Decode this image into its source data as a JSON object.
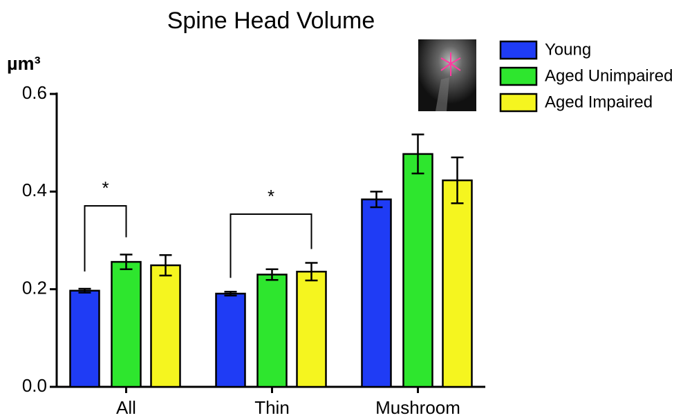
{
  "chart_data": {
    "type": "bar",
    "title": "Spine Head Volume",
    "y_label": "µm³",
    "categories": [
      "All",
      "Thin",
      "Mushroom"
    ],
    "series": [
      {
        "name": "Young",
        "color": "#1f3cf5",
        "values": [
          0.197,
          0.191,
          0.384
        ],
        "errors": [
          0.004,
          0.004,
          0.016
        ]
      },
      {
        "name": "Aged Unimpaired",
        "color": "#2ee62e",
        "values": [
          0.256,
          0.23,
          0.477
        ],
        "errors": [
          0.015,
          0.011,
          0.04
        ]
      },
      {
        "name": "Aged Impaired",
        "color": "#f5f51f",
        "values": [
          0.249,
          0.236,
          0.423
        ],
        "errors": [
          0.021,
          0.018,
          0.047
        ]
      }
    ],
    "ylim": [
      0,
      0.6
    ],
    "yticks": [
      {
        "value": 0,
        "label": "0.0"
      },
      0.2,
      0.4,
      0.6
    ],
    "annotations": [
      "*",
      "*"
    ],
    "grid": false
  }
}
